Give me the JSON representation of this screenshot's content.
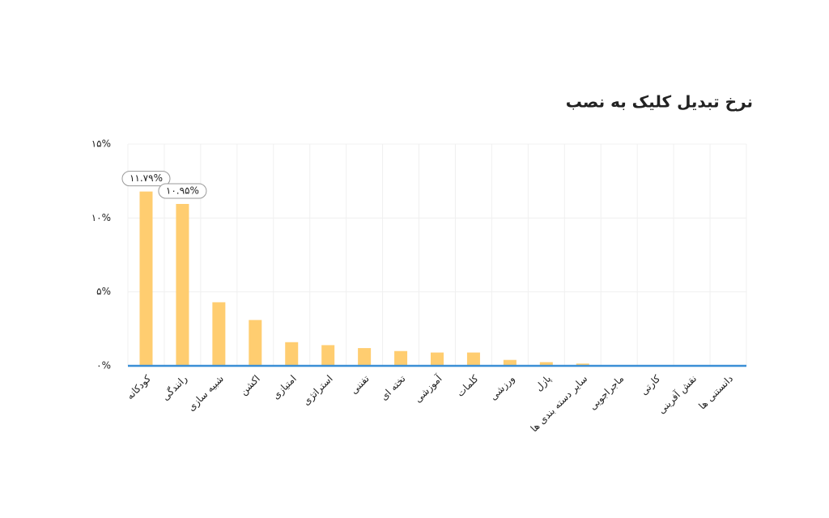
{
  "chart_data": {
    "type": "bar",
    "title": "نرخ تبدیل کلیک به نصب",
    "categories": [
      "کودکانه",
      "رانندگی",
      "شبیه سازی",
      "اکشن",
      "امتیازی",
      "استراتژی",
      "تفننی",
      "تخته ای",
      "آموزشی",
      "کلمات",
      "ورزشی",
      "پازل",
      "سایر دسته بندی ها",
      "ماجراجویی",
      "کارتی",
      "نقش آفرینی",
      "دانستنی ها"
    ],
    "values": [
      11.79,
      10.95,
      4.3,
      3.1,
      1.6,
      1.4,
      1.2,
      1.0,
      0.9,
      0.9,
      0.4,
      0.25,
      0.15,
      0,
      0,
      0,
      0
    ],
    "value_labels": [
      "۱۱.۷۹%",
      "۱۰.۹۵%",
      null,
      null,
      null,
      null,
      null,
      null,
      null,
      null,
      null,
      null,
      null,
      null,
      null,
      null,
      null
    ],
    "color": "#ffcd70",
    "ylim": [
      0,
      15
    ],
    "yticks": [
      {
        "value": 0,
        "label": "۰%"
      },
      {
        "value": 5,
        "label": "۵%"
      },
      {
        "value": 10,
        "label": "۱۰%"
      },
      {
        "value": 15,
        "label": "۱۵%"
      }
    ],
    "grid": true
  }
}
